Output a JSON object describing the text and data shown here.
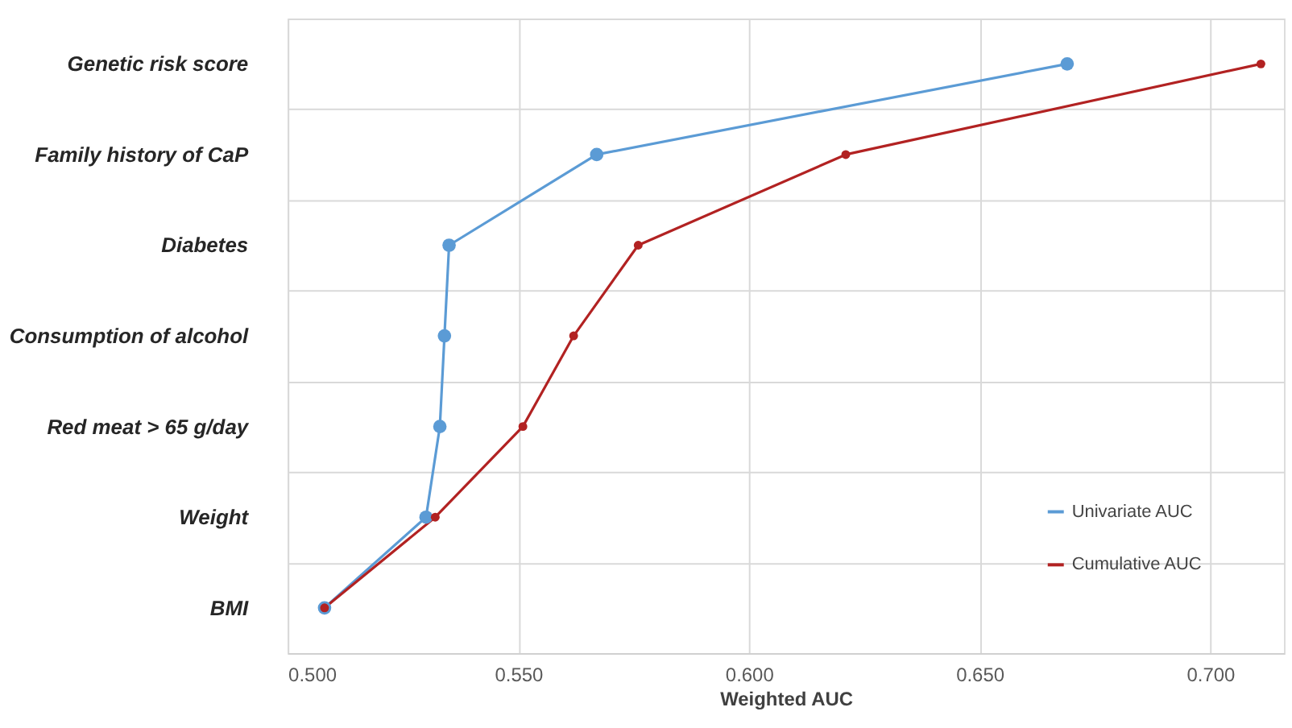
{
  "chart_data": {
    "type": "line",
    "xlabel": "Weighted AUC",
    "categories": [
      "Genetic risk score",
      "Family history of CaP",
      "Diabetes",
      "Consumption of alcohol",
      "Red meat > 65 g/day",
      "Weight",
      "BMI"
    ],
    "orientation": "horizontal",
    "series": [
      {
        "name": "Univariate AUC",
        "color": "#5b9bd5",
        "values": [
          0.669,
          0.567,
          0.535,
          0.534,
          0.533,
          0.53,
          0.508
        ]
      },
      {
        "name": "Cumulative AUC",
        "color": "#b22222",
        "values": [
          0.711,
          0.621,
          0.576,
          0.562,
          0.551,
          0.532,
          0.508
        ]
      }
    ],
    "xlim": [
      0.5,
      0.716
    ],
    "xticks": [
      {
        "value": 0.5,
        "label": "0.500"
      },
      {
        "value": 0.55,
        "label": "0.550"
      },
      {
        "value": 0.6,
        "label": "0.600"
      },
      {
        "value": 0.65,
        "label": "0.650"
      },
      {
        "value": 0.7,
        "label": "0.700"
      }
    ],
    "grid": true,
    "legend": "bottom right",
    "marker": "circle",
    "line_style": "solid"
  }
}
